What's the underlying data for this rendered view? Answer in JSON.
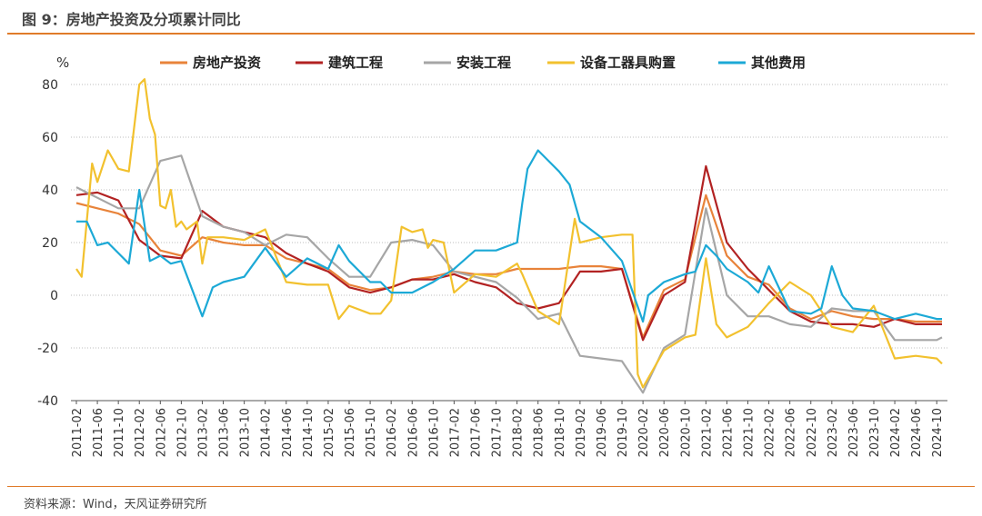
{
  "header": {
    "title": "图 9：房地产投资及分项累计同比"
  },
  "footer": {
    "source": "资料来源：Wind，天风证券研究所"
  },
  "chart_data": {
    "type": "line",
    "ylabel": "%",
    "ylim": [
      -40,
      80
    ],
    "yticks": [
      -40,
      -20,
      0,
      20,
      40,
      60,
      80
    ],
    "grid": "horizontal dotted",
    "legend_position": "top",
    "x_start": "2011-02",
    "x_end": "2024-11",
    "xticks": [
      "2011-02",
      "2011-06",
      "2011-10",
      "2012-02",
      "2012-06",
      "2012-10",
      "2013-02",
      "2013-06",
      "2013-10",
      "2014-02",
      "2014-06",
      "2014-10",
      "2015-02",
      "2015-06",
      "2015-10",
      "2016-02",
      "2016-06",
      "2016-10",
      "2017-02",
      "2017-06",
      "2017-10",
      "2018-02",
      "2018-06",
      "2018-10",
      "2019-02",
      "2019-06",
      "2019-10",
      "2020-02",
      "2020-06",
      "2020-10",
      "2021-02",
      "2021-06",
      "2021-10",
      "2022-02",
      "2022-06",
      "2022-10",
      "2023-02",
      "2023-06",
      "2023-10",
      "2024-02",
      "2024-06",
      "2024-10"
    ],
    "series": [
      {
        "name": "房地产投资",
        "color": "#E8833A",
        "points": [
          [
            "2011-02",
            35
          ],
          [
            "2011-06",
            33
          ],
          [
            "2011-10",
            31
          ],
          [
            "2012-02",
            27
          ],
          [
            "2012-06",
            17
          ],
          [
            "2012-10",
            15
          ],
          [
            "2013-02",
            22
          ],
          [
            "2013-06",
            20
          ],
          [
            "2013-10",
            19
          ],
          [
            "2014-02",
            19
          ],
          [
            "2014-06",
            14
          ],
          [
            "2014-10",
            12
          ],
          [
            "2015-02",
            10
          ],
          [
            "2015-06",
            4
          ],
          [
            "2015-10",
            2
          ],
          [
            "2016-02",
            3
          ],
          [
            "2016-06",
            6
          ],
          [
            "2016-10",
            7
          ],
          [
            "2017-02",
            9
          ],
          [
            "2017-06",
            8
          ],
          [
            "2017-10",
            8
          ],
          [
            "2018-02",
            10
          ],
          [
            "2018-06",
            10
          ],
          [
            "2018-10",
            10
          ],
          [
            "2019-02",
            11
          ],
          [
            "2019-06",
            11
          ],
          [
            "2019-10",
            10
          ],
          [
            "2020-02",
            -16
          ],
          [
            "2020-06",
            2
          ],
          [
            "2020-10",
            6
          ],
          [
            "2021-02",
            38
          ],
          [
            "2021-06",
            15
          ],
          [
            "2021-10",
            7
          ],
          [
            "2022-02",
            4
          ],
          [
            "2022-06",
            -5
          ],
          [
            "2022-10",
            -9
          ],
          [
            "2023-02",
            -6
          ],
          [
            "2023-06",
            -8
          ],
          [
            "2023-10",
            -9
          ],
          [
            "2024-02",
            -9
          ],
          [
            "2024-06",
            -10
          ],
          [
            "2024-10",
            -10
          ],
          [
            "2024-11",
            -10
          ]
        ]
      },
      {
        "name": "建筑工程",
        "color": "#B22222",
        "points": [
          [
            "2011-02",
            38
          ],
          [
            "2011-06",
            39
          ],
          [
            "2011-10",
            36
          ],
          [
            "2012-02",
            21
          ],
          [
            "2012-06",
            15
          ],
          [
            "2012-10",
            14
          ],
          [
            "2013-02",
            32
          ],
          [
            "2013-06",
            26
          ],
          [
            "2013-10",
            24
          ],
          [
            "2014-02",
            22
          ],
          [
            "2014-06",
            16
          ],
          [
            "2014-10",
            12
          ],
          [
            "2015-02",
            9
          ],
          [
            "2015-06",
            3
          ],
          [
            "2015-10",
            1
          ],
          [
            "2016-02",
            3
          ],
          [
            "2016-06",
            6
          ],
          [
            "2016-10",
            6
          ],
          [
            "2017-02",
            8
          ],
          [
            "2017-06",
            5
          ],
          [
            "2017-10",
            3
          ],
          [
            "2018-02",
            -3
          ],
          [
            "2018-06",
            -5
          ],
          [
            "2018-10",
            -3
          ],
          [
            "2019-02",
            9
          ],
          [
            "2019-06",
            9
          ],
          [
            "2019-10",
            10
          ],
          [
            "2020-02",
            -17
          ],
          [
            "2020-06",
            0
          ],
          [
            "2020-10",
            5
          ],
          [
            "2021-02",
            49
          ],
          [
            "2021-06",
            20
          ],
          [
            "2021-10",
            10
          ],
          [
            "2022-02",
            2
          ],
          [
            "2022-06",
            -6
          ],
          [
            "2022-10",
            -10
          ],
          [
            "2023-02",
            -11
          ],
          [
            "2023-06",
            -11
          ],
          [
            "2023-10",
            -12
          ],
          [
            "2024-02",
            -9
          ],
          [
            "2024-06",
            -11
          ],
          [
            "2024-10",
            -11
          ],
          [
            "2024-11",
            -11
          ]
        ]
      },
      {
        "name": "安装工程",
        "color": "#A6A6A6",
        "points": [
          [
            "2011-02",
            41
          ],
          [
            "2011-06",
            37
          ],
          [
            "2011-10",
            33
          ],
          [
            "2012-02",
            33
          ],
          [
            "2012-06",
            51
          ],
          [
            "2012-10",
            53
          ],
          [
            "2013-02",
            30
          ],
          [
            "2013-06",
            26
          ],
          [
            "2013-10",
            24
          ],
          [
            "2014-02",
            19
          ],
          [
            "2014-06",
            23
          ],
          [
            "2014-10",
            22
          ],
          [
            "2015-02",
            14
          ],
          [
            "2015-06",
            7
          ],
          [
            "2015-10",
            7
          ],
          [
            "2016-02",
            20
          ],
          [
            "2016-06",
            21
          ],
          [
            "2016-10",
            19
          ],
          [
            "2017-02",
            9
          ],
          [
            "2017-06",
            7
          ],
          [
            "2017-10",
            5
          ],
          [
            "2018-02",
            -1
          ],
          [
            "2018-06",
            -9
          ],
          [
            "2018-10",
            -7
          ],
          [
            "2019-02",
            -23
          ],
          [
            "2019-06",
            -24
          ],
          [
            "2019-10",
            -25
          ],
          [
            "2020-02",
            -37
          ],
          [
            "2020-06",
            -20
          ],
          [
            "2020-10",
            -15
          ],
          [
            "2021-02",
            33
          ],
          [
            "2021-06",
            0
          ],
          [
            "2021-10",
            -8
          ],
          [
            "2022-02",
            -8
          ],
          [
            "2022-06",
            -11
          ],
          [
            "2022-10",
            -12
          ],
          [
            "2023-02",
            -5
          ],
          [
            "2023-06",
            -6
          ],
          [
            "2023-10",
            -6
          ],
          [
            "2024-02",
            -17
          ],
          [
            "2024-06",
            -17
          ],
          [
            "2024-10",
            -17
          ],
          [
            "2024-11",
            -16
          ]
        ]
      },
      {
        "name": "设备工器具购置",
        "color": "#F2C12E",
        "points": [
          [
            "2011-02",
            10
          ],
          [
            "2011-03",
            7
          ],
          [
            "2011-05",
            50
          ],
          [
            "2011-06",
            43
          ],
          [
            "2011-08",
            55
          ],
          [
            "2011-10",
            48
          ],
          [
            "2011-12",
            47
          ],
          [
            "2012-02",
            80
          ],
          [
            "2012-03",
            82
          ],
          [
            "2012-04",
            67
          ],
          [
            "2012-05",
            61
          ],
          [
            "2012-06",
            34
          ],
          [
            "2012-07",
            33
          ],
          [
            "2012-08",
            40
          ],
          [
            "2012-09",
            26
          ],
          [
            "2012-10",
            28
          ],
          [
            "2012-11",
            25
          ],
          [
            "2013-01",
            28
          ],
          [
            "2013-02",
            12
          ],
          [
            "2013-03",
            22
          ],
          [
            "2013-06",
            22
          ],
          [
            "2013-10",
            21
          ],
          [
            "2014-02",
            25
          ],
          [
            "2014-06",
            5
          ],
          [
            "2014-10",
            4
          ],
          [
            "2015-02",
            4
          ],
          [
            "2015-04",
            -9
          ],
          [
            "2015-06",
            -4
          ],
          [
            "2015-10",
            -7
          ],
          [
            "2015-12",
            -7
          ],
          [
            "2016-02",
            -2
          ],
          [
            "2016-04",
            26
          ],
          [
            "2016-06",
            24
          ],
          [
            "2016-08",
            25
          ],
          [
            "2016-09",
            18
          ],
          [
            "2016-10",
            21
          ],
          [
            "2016-12",
            20
          ],
          [
            "2017-02",
            1
          ],
          [
            "2017-06",
            8
          ],
          [
            "2017-10",
            7
          ],
          [
            "2018-02",
            12
          ],
          [
            "2018-03",
            8
          ],
          [
            "2018-06",
            -6
          ],
          [
            "2018-10",
            -11
          ],
          [
            "2019-01",
            29
          ],
          [
            "2019-02",
            20
          ],
          [
            "2019-06",
            22
          ],
          [
            "2019-10",
            23
          ],
          [
            "2019-12",
            23
          ],
          [
            "2020-01",
            -30
          ],
          [
            "2020-02",
            -35
          ],
          [
            "2020-06",
            -21
          ],
          [
            "2020-10",
            -16
          ],
          [
            "2020-12",
            -15
          ],
          [
            "2021-02",
            14
          ],
          [
            "2021-04",
            -11
          ],
          [
            "2021-06",
            -16
          ],
          [
            "2021-10",
            -12
          ],
          [
            "2022-02",
            -3
          ],
          [
            "2022-06",
            5
          ],
          [
            "2022-10",
            0
          ],
          [
            "2023-02",
            -12
          ],
          [
            "2023-06",
            -14
          ],
          [
            "2023-10",
            -4
          ],
          [
            "2024-02",
            -24
          ],
          [
            "2024-06",
            -23
          ],
          [
            "2024-10",
            -24
          ],
          [
            "2024-11",
            -26
          ]
        ]
      },
      {
        "name": "其他费用",
        "color": "#1CA9D6",
        "points": [
          [
            "2011-02",
            28
          ],
          [
            "2011-04",
            28
          ],
          [
            "2011-06",
            19
          ],
          [
            "2011-08",
            20
          ],
          [
            "2011-10",
            16
          ],
          [
            "2011-12",
            12
          ],
          [
            "2012-02",
            40
          ],
          [
            "2012-04",
            13
          ],
          [
            "2012-06",
            15
          ],
          [
            "2012-08",
            12
          ],
          [
            "2012-10",
            13
          ],
          [
            "2013-02",
            -8
          ],
          [
            "2013-04",
            3
          ],
          [
            "2013-06",
            5
          ],
          [
            "2013-10",
            7
          ],
          [
            "2014-02",
            18
          ],
          [
            "2014-06",
            7
          ],
          [
            "2014-10",
            14
          ],
          [
            "2015-02",
            10
          ],
          [
            "2015-04",
            19
          ],
          [
            "2015-06",
            13
          ],
          [
            "2015-10",
            5
          ],
          [
            "2015-12",
            5
          ],
          [
            "2016-02",
            1
          ],
          [
            "2016-06",
            1
          ],
          [
            "2016-10",
            5
          ],
          [
            "2017-02",
            10
          ],
          [
            "2017-06",
            17
          ],
          [
            "2017-10",
            17
          ],
          [
            "2018-02",
            20
          ],
          [
            "2018-03",
            35
          ],
          [
            "2018-04",
            48
          ],
          [
            "2018-06",
            55
          ],
          [
            "2018-08",
            51
          ],
          [
            "2018-10",
            47
          ],
          [
            "2018-12",
            42
          ],
          [
            "2019-02",
            28
          ],
          [
            "2019-06",
            22
          ],
          [
            "2019-10",
            13
          ],
          [
            "2020-02",
            -10
          ],
          [
            "2020-03",
            0
          ],
          [
            "2020-06",
            5
          ],
          [
            "2020-10",
            8
          ],
          [
            "2020-12",
            9
          ],
          [
            "2021-02",
            19
          ],
          [
            "2021-04",
            15
          ],
          [
            "2021-06",
            10
          ],
          [
            "2021-10",
            5
          ],
          [
            "2021-12",
            1
          ],
          [
            "2022-02",
            11
          ],
          [
            "2022-06",
            -6
          ],
          [
            "2022-10",
            -7
          ],
          [
            "2022-12",
            -5
          ],
          [
            "2023-02",
            11
          ],
          [
            "2023-04",
            0
          ],
          [
            "2023-06",
            -5
          ],
          [
            "2023-10",
            -6
          ],
          [
            "2024-02",
            -9
          ],
          [
            "2024-06",
            -7
          ],
          [
            "2024-10",
            -9
          ],
          [
            "2024-11",
            -9
          ]
        ]
      }
    ]
  }
}
